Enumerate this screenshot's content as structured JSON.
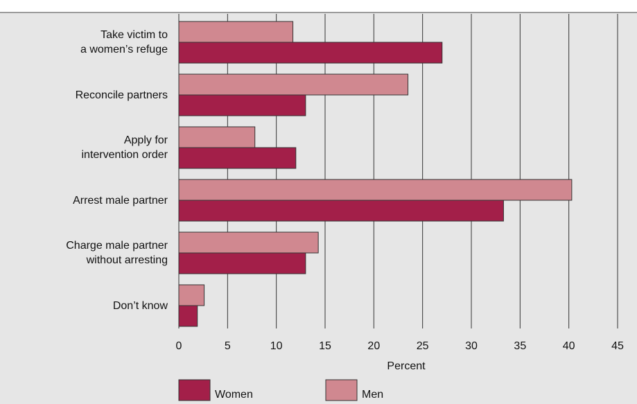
{
  "chart_data": {
    "type": "bar",
    "orientation": "horizontal",
    "categories": [
      "Take victim to\na women’s refuge",
      "Reconcile partners",
      "Apply for\nintervention order",
      "Arrest male partner",
      "Charge male partner\nwithout arresting",
      "Don’t know"
    ],
    "series": [
      {
        "name": "Women",
        "color": "#a31f49",
        "values": [
          27,
          13,
          12,
          33.3,
          13,
          1.9
        ]
      },
      {
        "name": "Men",
        "color": "#d08890",
        "values": [
          11.7,
          23.5,
          7.8,
          40.3,
          14.3,
          2.6
        ]
      }
    ],
    "xlabel": "Percent",
    "xlim": [
      0,
      45
    ],
    "xticks": [
      0,
      5,
      10,
      15,
      20,
      25,
      30,
      35,
      40,
      45
    ],
    "grid": true
  }
}
